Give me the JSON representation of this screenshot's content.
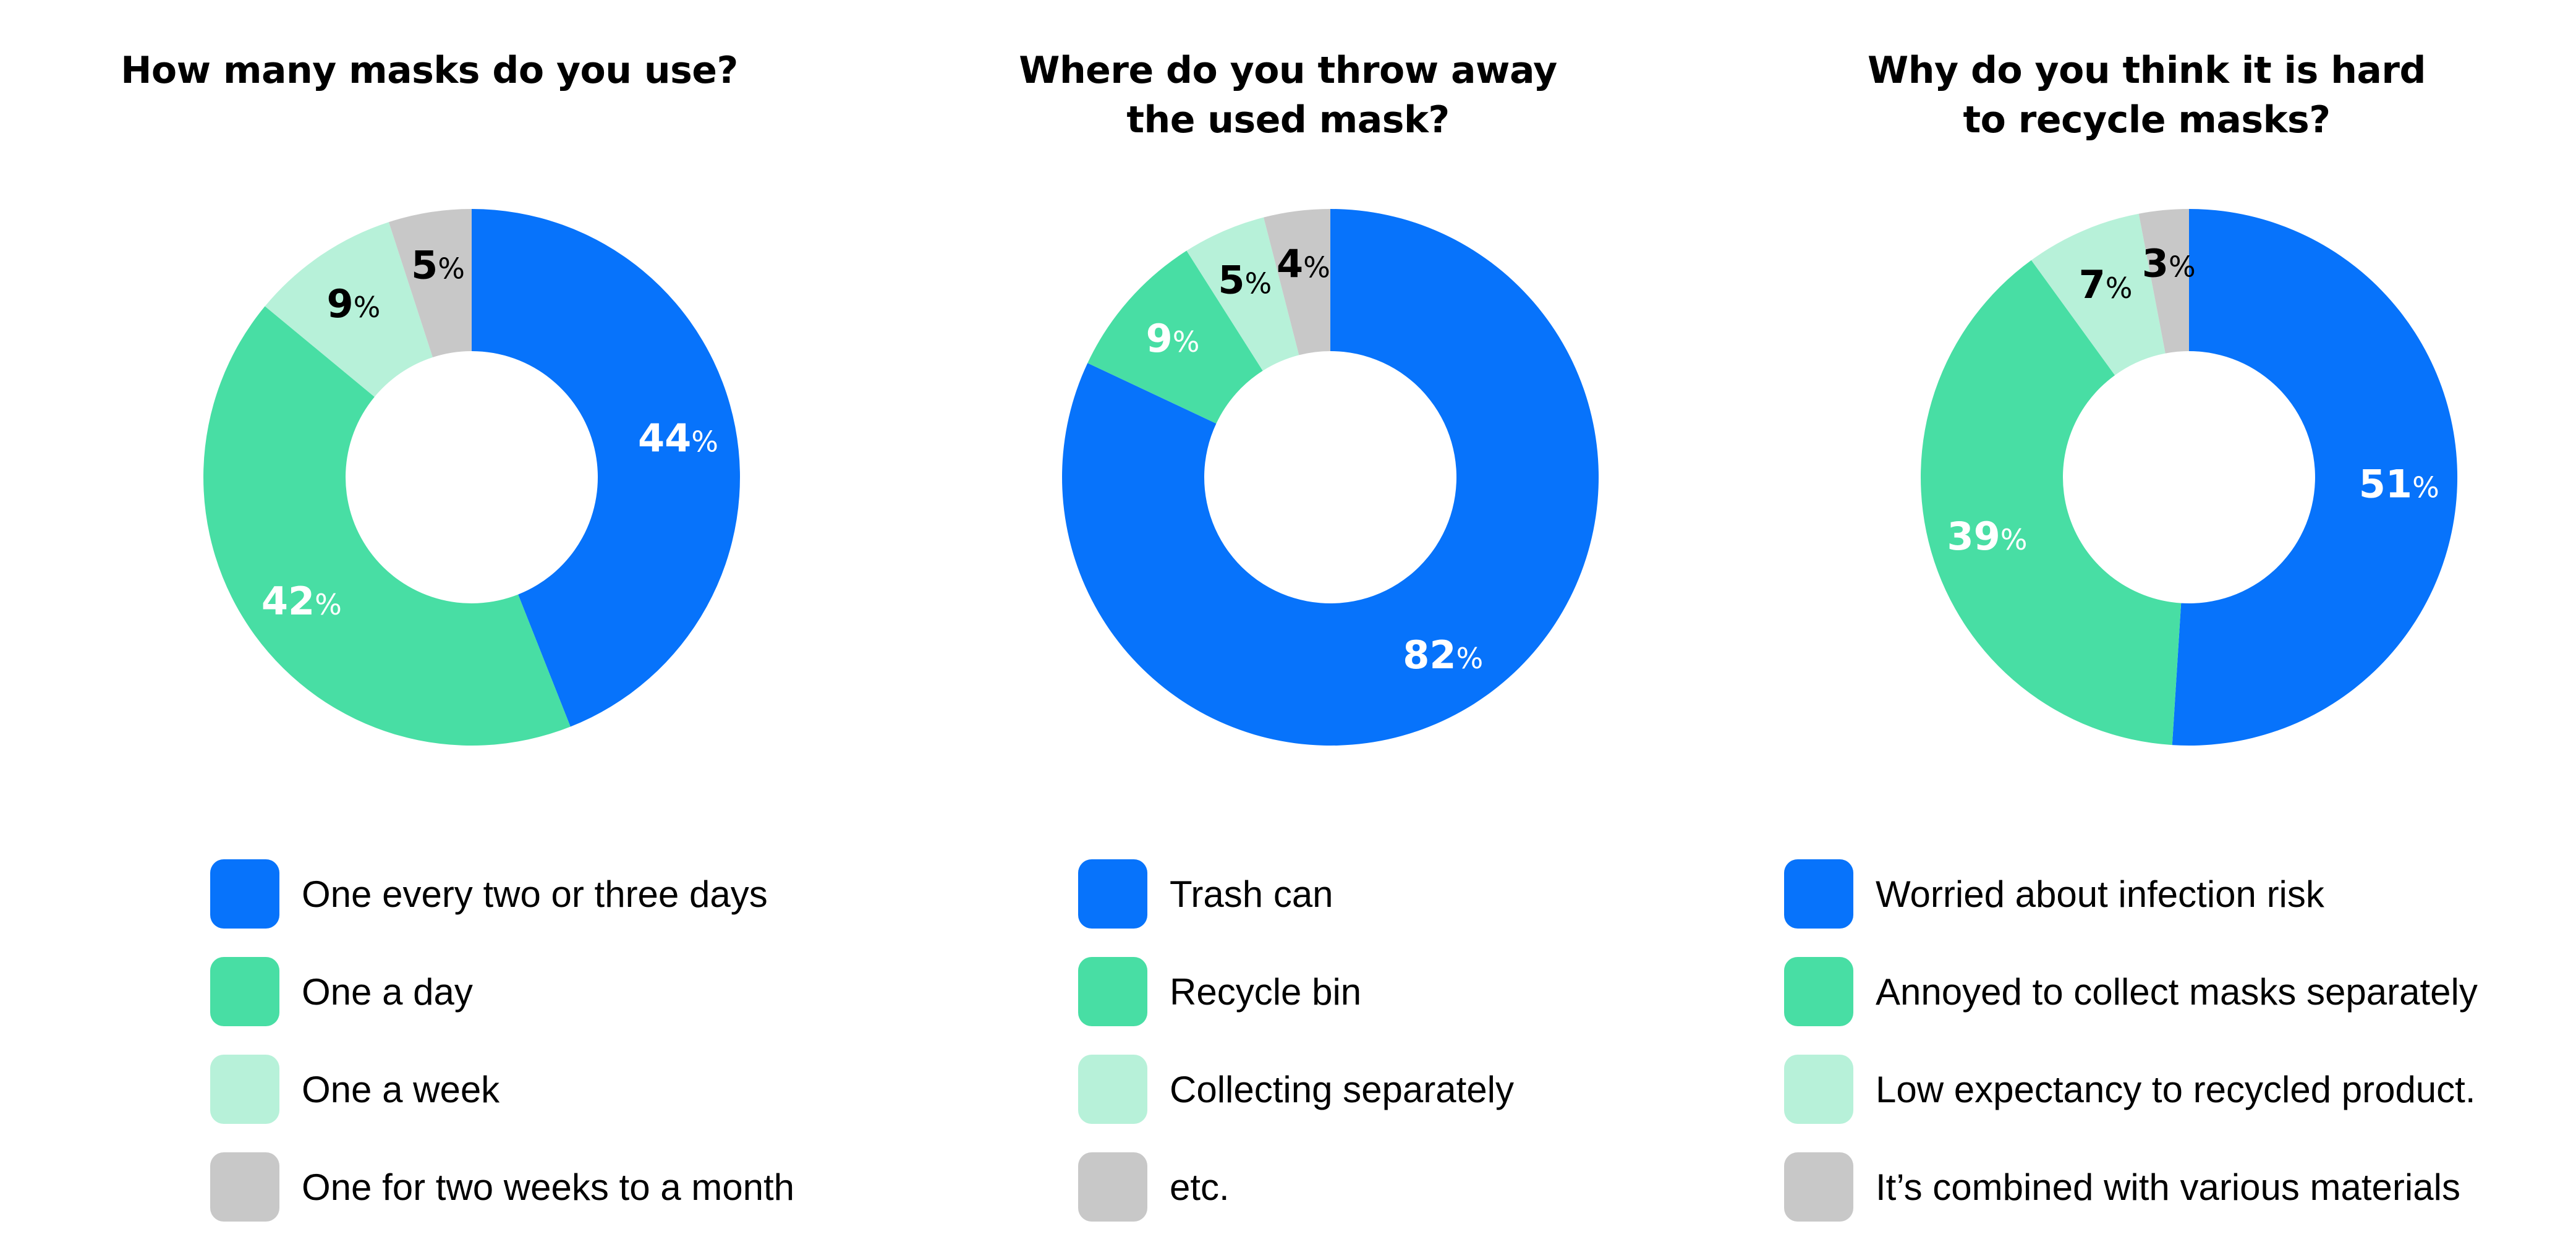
{
  "colors": {
    "blue": "#0773fb",
    "green": "#48dea4",
    "mint": "#b7f1d9",
    "gray": "#c8c8c8",
    "white": "#ffffff",
    "black": "#000000"
  },
  "chart_data": [
    {
      "type": "pie",
      "variant": "donut",
      "title_lines": [
        "How many masks do you use?"
      ],
      "percent_symbol": "%",
      "slices": [
        {
          "label": "One every two or three days",
          "value": 44,
          "color": "#0773fb",
          "value_text_color": "#ffffff"
        },
        {
          "label": "One a day",
          "value": 42,
          "color": "#48dea4",
          "value_text_color": "#ffffff"
        },
        {
          "label": "One a week",
          "value": 9,
          "color": "#b7f1d9",
          "value_text_color": "#000000"
        },
        {
          "label": "One for two weeks to a month",
          "value": 5,
          "color": "#c8c8c8",
          "value_text_color": "#000000"
        }
      ],
      "legend_position": "bottom"
    },
    {
      "type": "pie",
      "variant": "donut",
      "title_lines": [
        "Where do you throw away",
        "the used mask?"
      ],
      "percent_symbol": "%",
      "slices": [
        {
          "label": "Trash can",
          "value": 82,
          "color": "#0773fb",
          "value_text_color": "#ffffff"
        },
        {
          "label": "Recycle bin",
          "value": 9,
          "color": "#48dea4",
          "value_text_color": "#ffffff"
        },
        {
          "label": "Collecting separately",
          "value": 5,
          "color": "#b7f1d9",
          "value_text_color": "#000000"
        },
        {
          "label": "etc.",
          "value": 4,
          "color": "#c8c8c8",
          "value_text_color": "#000000"
        }
      ],
      "legend_position": "bottom"
    },
    {
      "type": "pie",
      "variant": "donut",
      "title_lines": [
        "Why do you think it is hard",
        "to recycle masks?"
      ],
      "percent_symbol": "%",
      "slices": [
        {
          "label": "Worried about infection risk",
          "value": 51,
          "color": "#0773fb",
          "value_text_color": "#ffffff"
        },
        {
          "label": "Annoyed to collect masks separately",
          "value": 39,
          "color": "#48dea4",
          "value_text_color": "#ffffff"
        },
        {
          "label": "Low expectancy to recycled product.",
          "value": 7,
          "color": "#b7f1d9",
          "value_text_color": "#000000"
        },
        {
          "label": "It’s combined with various materials",
          "value": 3,
          "color": "#c8c8c8",
          "value_text_color": "#000000"
        }
      ],
      "legend_position": "bottom"
    }
  ]
}
